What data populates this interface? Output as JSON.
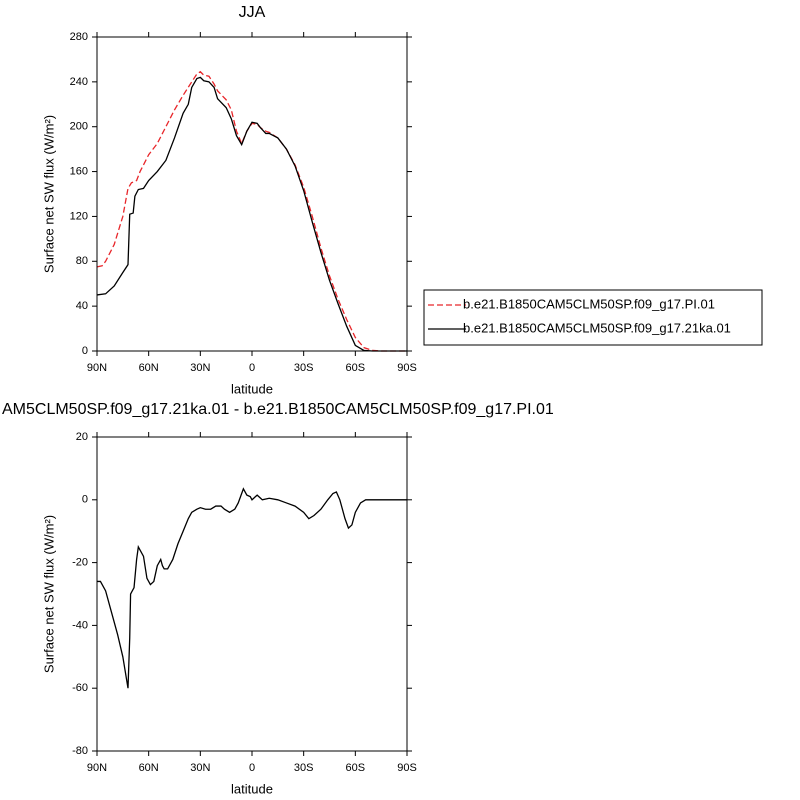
{
  "chart_data": [
    {
      "type": "line",
      "title": "JJA",
      "xlabel": "latitude",
      "ylabel": "Surface net SW flux (W/m²)",
      "xlim": [
        90,
        -90
      ],
      "ylim": [
        0,
        280
      ],
      "xticks": [
        {
          "value": 90,
          "label": "90N"
        },
        {
          "value": 60,
          "label": "60N"
        },
        {
          "value": 30,
          "label": "30N"
        },
        0,
        {
          "value": -30,
          "label": "30S"
        },
        {
          "value": -60,
          "label": "60S"
        },
        {
          "value": -90,
          "label": "90S"
        }
      ],
      "yticks": [
        0,
        40,
        80,
        120,
        160,
        200,
        240,
        280
      ],
      "legend": "right",
      "series": [
        {
          "name": "b.e21.B1850CAM5CLM50SP.f09_g17.PI.01",
          "color": "#e8262a",
          "dash": true,
          "x": [
            90,
            87,
            85,
            80,
            75,
            72,
            70,
            67,
            65,
            60,
            55,
            50,
            45,
            40,
            35,
            32,
            30,
            28,
            25,
            22,
            20,
            15,
            12,
            9,
            6,
            3,
            0,
            -3,
            -5,
            -8,
            -10,
            -15,
            -20,
            -25,
            -30,
            -35,
            -40,
            -45,
            -50,
            -55,
            -60,
            -65,
            -70,
            -75,
            -90
          ],
          "values": [
            75,
            76,
            80,
            95,
            120,
            145,
            150,
            152,
            160,
            175,
            185,
            200,
            215,
            228,
            240,
            247,
            249,
            246,
            245,
            238,
            232,
            224,
            215,
            196,
            185,
            196,
            203,
            202,
            199,
            196,
            195,
            190,
            180,
            166,
            146,
            120,
            92,
            67,
            46,
            28,
            12,
            3,
            0.5,
            0,
            0
          ]
        },
        {
          "name": "b.e21.B1850CAM5CLM50SP.f09_g17.21ka.01",
          "color": "#000000",
          "dash": false,
          "x": [
            90,
            85,
            80,
            75,
            72,
            71,
            69,
            68,
            66,
            63,
            60,
            55,
            50,
            45,
            40,
            37,
            35,
            32,
            30,
            28,
            25,
            22,
            20,
            15,
            12,
            9,
            6,
            3,
            0,
            -3,
            -5,
            -8,
            -10,
            -15,
            -20,
            -25,
            -30,
            -35,
            -40,
            -45,
            -50,
            -55,
            -60,
            -65,
            -70,
            -90
          ],
          "values": [
            50,
            51,
            58,
            70,
            77,
            122,
            123,
            138,
            144,
            145,
            152,
            160,
            170,
            190,
            212,
            220,
            235,
            243,
            244,
            241,
            240,
            235,
            225,
            217,
            207,
            192,
            184,
            196,
            204,
            203,
            199,
            194,
            194,
            190,
            180,
            165,
            143,
            115,
            88,
            63,
            42,
            22,
            5,
            0.5,
            0,
            0
          ]
        }
      ]
    },
    {
      "type": "line",
      "title": "AM5CLM50SP.f09_g17.21ka.01 - b.e21.B1850CAM5CLM50SP.f09_g17.PI.01",
      "xlabel": "latitude",
      "ylabel": "Surface net SW flux (W/m²)",
      "xlim": [
        90,
        -90
      ],
      "ylim": [
        -80,
        20
      ],
      "xticks": [
        {
          "value": 90,
          "label": "90N"
        },
        {
          "value": 60,
          "label": "60N"
        },
        {
          "value": 30,
          "label": "30N"
        },
        0,
        {
          "value": -30,
          "label": "30S"
        },
        {
          "value": -60,
          "label": "60S"
        },
        {
          "value": -90,
          "label": "90S"
        }
      ],
      "yticks": [
        -80,
        -60,
        -40,
        -20,
        0,
        20
      ],
      "series": [
        {
          "color": "#000000",
          "dash": false,
          "x": [
            90,
            88,
            85,
            82,
            78,
            75,
            72,
            71,
            70.5,
            69.5,
            68.5,
            67,
            66,
            65,
            63,
            61,
            59,
            57,
            55,
            53,
            52,
            51,
            49,
            46,
            43,
            40,
            37,
            35,
            32,
            30,
            27,
            24,
            21,
            18,
            16,
            13,
            10,
            8,
            6,
            5,
            3,
            1,
            0,
            -2,
            -3,
            -5,
            -6,
            -10,
            -15,
            -20,
            -25,
            -30,
            -33,
            -36,
            -40,
            -44,
            -47,
            -49,
            -51,
            -54,
            -56,
            -58,
            -60,
            -63,
            -66,
            -70,
            -90
          ],
          "values": [
            -26,
            -26,
            -29,
            -35,
            -43,
            -50,
            -60,
            -44,
            -30,
            -29,
            -28,
            -19,
            -15,
            -16,
            -18,
            -25,
            -27,
            -26,
            -21,
            -19,
            -21,
            -22,
            -22,
            -19,
            -14,
            -10,
            -6,
            -4,
            -3,
            -2.5,
            -3,
            -3,
            -2,
            -2,
            -3,
            -4,
            -3,
            -1,
            2,
            3.5,
            1.5,
            1,
            0,
            1,
            1.5,
            0.5,
            0,
            0.5,
            0,
            -1,
            -2,
            -4,
            -6,
            -5,
            -3,
            0,
            2,
            2.5,
            0,
            -6,
            -9,
            -8,
            -4,
            -1,
            0,
            0,
            0
          ]
        }
      ]
    }
  ]
}
